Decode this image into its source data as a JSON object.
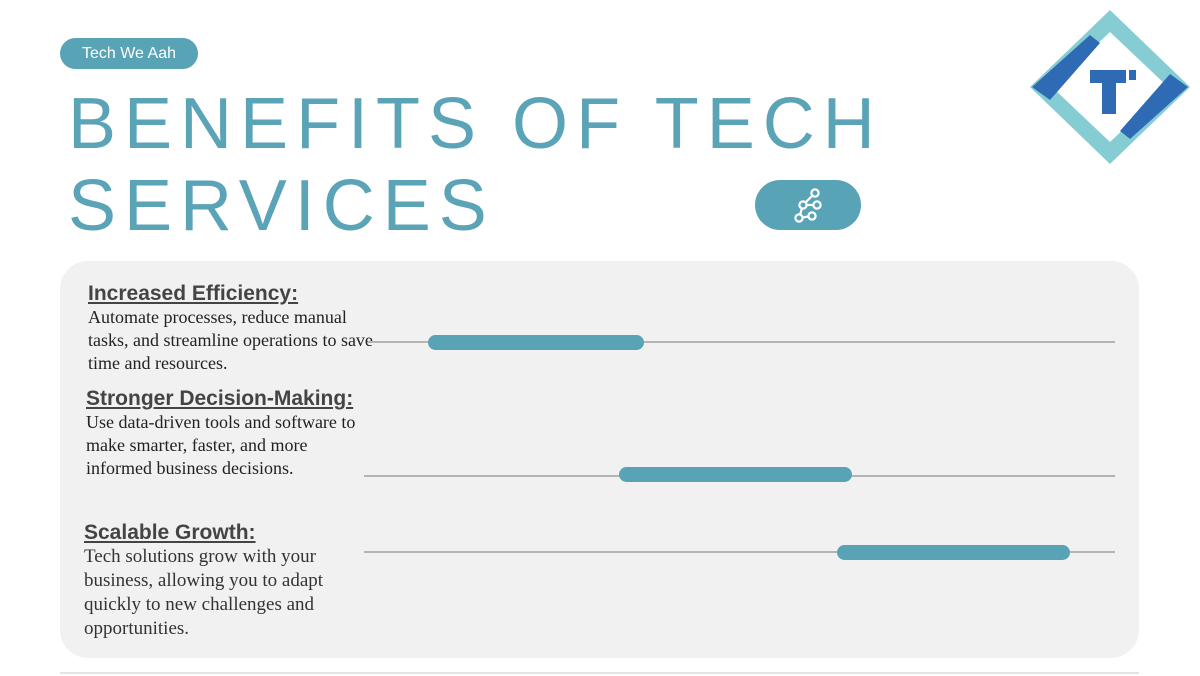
{
  "header": {
    "badge_label": "Tech We Aah",
    "title_line1": "BENEFITS OF TECH",
    "title_line2": "SERVICES"
  },
  "logo": {
    "icon": "tech-we-aah-diamond-logo",
    "letter": "T"
  },
  "network_button": {
    "icon": "network-nodes-icon"
  },
  "benefits": [
    {
      "heading": "Increased Efficiency:",
      "description": "Automate processes, reduce manual tasks, and streamline operations to save time and resources.",
      "timeline_start": 0.08,
      "timeline_end": 0.37
    },
    {
      "heading": "Stronger Decision-Making:",
      "description": "Use data-driven tools and software to make smarter, faster, and more informed business decisions.",
      "timeline_start": 0.34,
      "timeline_end": 0.65
    },
    {
      "heading": "Scalable Growth:",
      "description": "Tech solutions grow with your business, allowing you to adapt quickly to new challenges and opportunities.",
      "timeline_start": 0.63,
      "timeline_end": 0.94
    }
  ],
  "colors": {
    "accent": "#58a3b6",
    "logo_light": "#7ecbd1",
    "logo_dark": "#2f6bb5",
    "panel": "#f1f1f1",
    "heading_text": "#444444"
  }
}
